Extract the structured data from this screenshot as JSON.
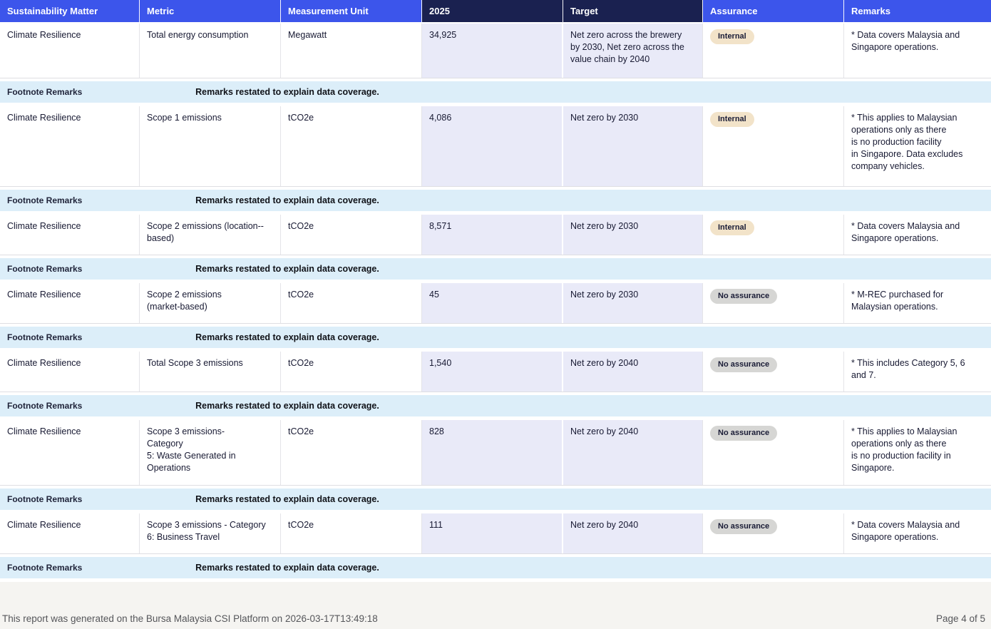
{
  "table": {
    "columns": [
      "Sustainability Matter",
      "Metric",
      "Measurement Unit",
      "2025",
      "Target",
      "Assurance",
      "Remarks"
    ],
    "rows": [
      {
        "matter": "Climate Resilience",
        "metric": "Total energy consumption",
        "unit": "Megawatt",
        "value_2025": "34,925",
        "target": "Net zero across the brewery\nby 2030, Net zero across the\nvalue chain by 2040",
        "assurance": "Internal",
        "assurance_type": "internal",
        "remarks": "* Data covers Malaysia and\nSingapore operations.",
        "footnote_label": "Footnote Remarks",
        "footnote_text": "Remarks restated to explain data coverage."
      },
      {
        "matter": "Climate Resilience",
        "metric": "Scope 1 emissions",
        "unit": "tCO2e",
        "value_2025": "4,086",
        "target": "Net zero by 2030",
        "assurance": "Internal",
        "assurance_type": "internal",
        "remarks": "* This applies to Malaysian\noperations only as there\nis no production facility\nin Singapore. Data excludes\ncompany vehicles.",
        "footnote_label": "Footnote Remarks",
        "footnote_text": "Remarks restated to explain data coverage."
      },
      {
        "matter": "Climate Resilience",
        "metric": "Scope 2 emissions (location--\nbased)",
        "unit": "tCO2e",
        "value_2025": "8,571",
        "target": "Net zero by 2030",
        "assurance": "Internal",
        "assurance_type": "internal",
        "remarks": "* Data covers Malaysia and\nSingapore operations.",
        "footnote_label": "Footnote Remarks",
        "footnote_text": "Remarks restated to explain data coverage."
      },
      {
        "matter": "Climate Resilience",
        "metric": "Scope 2 emissions\n(market-based)",
        "unit": "tCO2e",
        "value_2025": "45",
        "target": "Net zero by 2030",
        "assurance": "No assurance",
        "assurance_type": "none",
        "remarks": "* M-REC purchased for\nMalaysian operations.",
        "footnote_label": "Footnote Remarks",
        "footnote_text": "Remarks restated to explain data coverage."
      },
      {
        "matter": "Climate Resilience",
        "metric": "Total Scope 3 emissions",
        "unit": "tCO2e",
        "value_2025": "1,540",
        "target": "Net zero by 2040",
        "assurance": "No assurance",
        "assurance_type": "none",
        "remarks": "* This includes Category 5, 6\nand 7.",
        "footnote_label": "Footnote Remarks",
        "footnote_text": "Remarks restated to explain data coverage."
      },
      {
        "matter": "Climate Resilience",
        "metric": "Scope 3 emissions-\nCategory\n5: Waste Generated in\nOperations",
        "unit": "tCO2e",
        "value_2025": "828",
        "target": "Net zero by 2040",
        "assurance": "No assurance",
        "assurance_type": "none",
        "remarks": "* This applies to Malaysian\noperations only as there\nis no production facility in\nSingapore.",
        "footnote_label": "Footnote Remarks",
        "footnote_text": "Remarks restated to explain data coverage."
      },
      {
        "matter": "Climate Resilience",
        "metric": "Scope 3 emissions - Category\n6: Business Travel",
        "unit": "tCO2e",
        "value_2025": "111",
        "target": "Net zero by 2040",
        "assurance": "No assurance",
        "assurance_type": "none",
        "remarks": "* Data covers Malaysia and\nSingapore operations.",
        "footnote_label": "Footnote Remarks",
        "footnote_text": "Remarks restated to explain data coverage."
      }
    ]
  },
  "footer": {
    "generated_text": "This report was generated on the Bursa Malaysia CSI Platform on 2026-03-17T13:49:18",
    "page_text": "Page 4 of 5"
  },
  "colors": {
    "header_blue": "#3C55EB",
    "header_navy": "#1A2150",
    "value_column_bg": "#E9EAF8",
    "footnote_bg": "#DCEEF9",
    "badge_internal_bg": "#F2E3C9",
    "badge_no_assurance_bg": "#D6D6D4",
    "footer_bg": "#F5F4F1"
  }
}
